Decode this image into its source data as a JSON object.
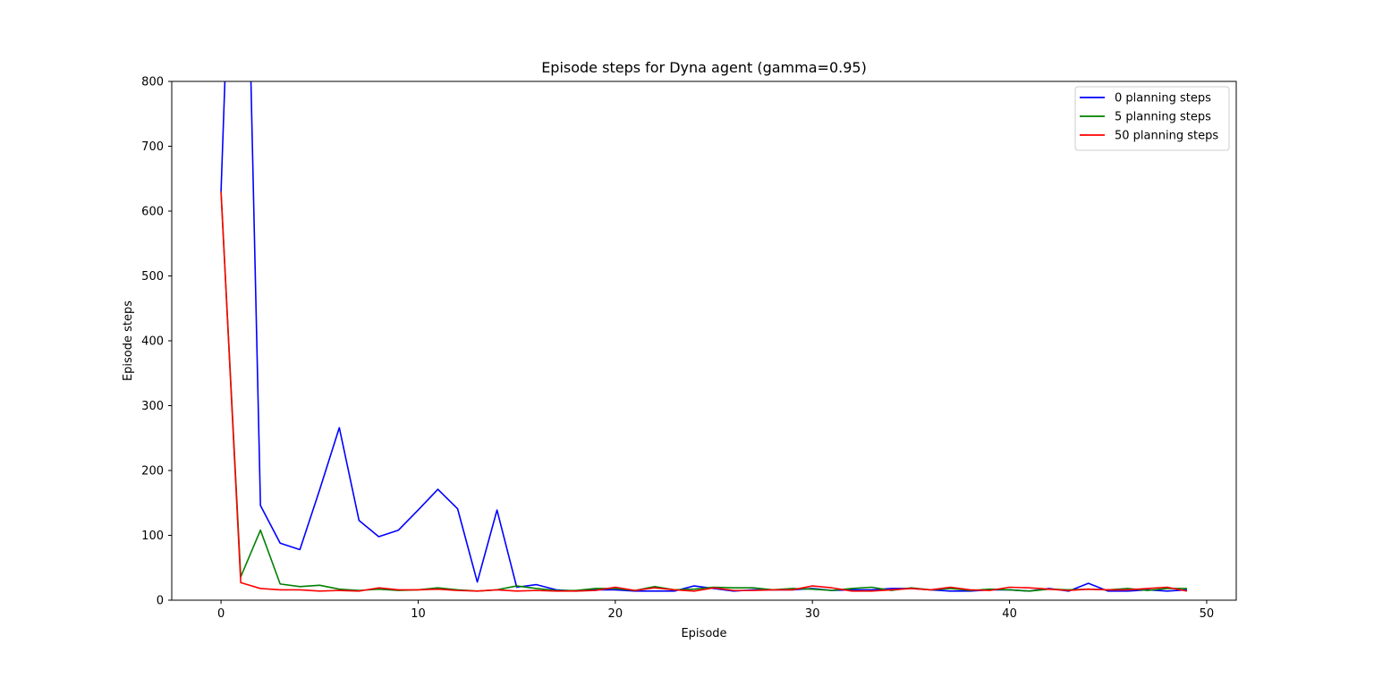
{
  "chart_data": {
    "type": "line",
    "title": "Episode steps for Dyna agent (gamma=0.95)",
    "xlabel": "Episode",
    "ylabel": "Episode steps",
    "xlim": [
      -2.5,
      51.5
    ],
    "ylim": [
      0,
      800
    ],
    "x_ticks": [
      0,
      10,
      20,
      30,
      40,
      50
    ],
    "y_ticks": [
      0,
      100,
      200,
      300,
      400,
      500,
      600,
      700,
      800
    ],
    "grid": false,
    "legend_position": "top-right",
    "x": [
      0,
      1,
      2,
      3,
      4,
      5,
      6,
      7,
      8,
      9,
      10,
      11,
      12,
      13,
      14,
      15,
      16,
      17,
      18,
      19,
      20,
      21,
      22,
      23,
      24,
      25,
      26,
      27,
      28,
      29,
      30,
      31,
      32,
      33,
      34,
      35,
      36,
      37,
      38,
      39,
      40,
      41,
      42,
      43,
      44,
      45,
      46,
      47,
      48,
      49
    ],
    "series": [
      {
        "name": "0 planning steps",
        "color": "#0000ff",
        "values": [
          630,
          1500,
          146,
          88,
          78,
          170,
          266,
          123,
          98,
          108,
          139,
          171,
          141,
          28,
          139,
          20,
          24,
          16,
          14,
          16,
          16,
          14,
          14,
          14,
          22,
          18,
          14,
          16,
          16,
          16,
          18,
          15,
          16,
          16,
          18,
          18,
          16,
          14,
          14,
          16,
          16,
          14,
          18,
          14,
          26,
          14,
          14,
          16,
          14,
          16
        ]
      },
      {
        "name": "5 planning steps",
        "color": "#008000",
        "values": [
          630,
          36,
          108,
          25,
          21,
          23,
          17,
          15,
          17,
          15,
          16,
          19,
          16,
          14,
          16,
          22,
          18,
          15,
          15,
          18,
          18,
          15,
          21,
          16,
          17,
          20,
          19,
          19,
          16,
          18,
          17,
          15,
          18,
          20,
          15,
          19,
          16,
          18,
          15,
          17,
          16,
          14,
          17,
          16,
          17,
          16,
          18,
          15,
          18,
          18
        ]
      },
      {
        "name": "50 planning steps",
        "color": "#ff0000",
        "values": [
          630,
          27,
          18,
          16,
          16,
          14,
          15,
          14,
          19,
          16,
          16,
          17,
          15,
          14,
          16,
          14,
          15,
          14,
          14,
          15,
          20,
          15,
          19,
          16,
          14,
          19,
          15,
          15,
          16,
          16,
          22,
          19,
          14,
          14,
          16,
          18,
          16,
          20,
          16,
          15,
          20,
          19,
          17,
          15,
          17,
          16,
          16,
          18,
          20,
          14
        ]
      }
    ]
  }
}
